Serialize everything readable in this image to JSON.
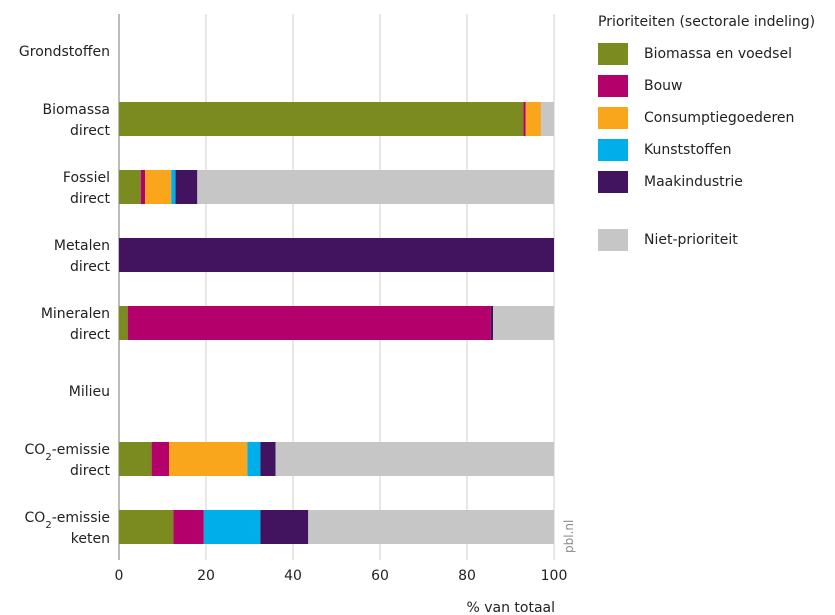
{
  "chart_data": {
    "type": "bar",
    "orientation": "horizontal",
    "stacked": true,
    "xlabel": "% van totaal",
    "xlim": [
      0,
      100
    ],
    "xticks": [
      0,
      20,
      40,
      60,
      80,
      100
    ],
    "grid": true,
    "legend_title": "Prioriteiten (sectorale indeling)",
    "legend_position": "right",
    "credit": "pbl.nl",
    "rows": [
      {
        "label_lines": [
          "Grondstoffen"
        ],
        "kind": "heading"
      },
      {
        "label_lines": [
          "Biomassa",
          "direct"
        ],
        "kind": "bar"
      },
      {
        "label_lines": [
          "Fossiel",
          "direct"
        ],
        "kind": "bar"
      },
      {
        "label_lines": [
          "Metalen",
          "direct"
        ],
        "kind": "bar"
      },
      {
        "label_lines": [
          "Mineralen",
          "direct"
        ],
        "kind": "bar"
      },
      {
        "label_lines": [
          "Milieu"
        ],
        "kind": "heading"
      },
      {
        "label_lines": [
          "CO2-emissie",
          "direct"
        ],
        "kind": "bar"
      },
      {
        "label_lines": [
          "CO2-emissie",
          "keten"
        ],
        "kind": "bar"
      }
    ],
    "series": [
      {
        "name": "Biomassa en voedsel",
        "color": "#7b8b1f",
        "values": [
          null,
          93,
          5,
          0,
          2,
          null,
          7.5,
          12.5
        ]
      },
      {
        "name": "Bouw",
        "color": "#b4006b",
        "values": [
          null,
          0.5,
          1,
          0,
          83.5,
          null,
          4,
          7
        ]
      },
      {
        "name": "Consumptiegoederen",
        "color": "#f9a61d",
        "values": [
          null,
          3.5,
          6,
          0,
          0,
          null,
          18,
          0
        ]
      },
      {
        "name": "Kunststoffen",
        "color": "#00aee9",
        "values": [
          null,
          0,
          1,
          0,
          0,
          null,
          3,
          13
        ]
      },
      {
        "name": "Maakindustrie",
        "color": "#42145f",
        "values": [
          null,
          0,
          5,
          100,
          0.5,
          null,
          3.5,
          11
        ]
      },
      {
        "name": "Niet-prioriteit",
        "color": "#c6c6c6",
        "values": [
          null,
          3,
          82,
          0,
          14,
          null,
          64,
          56.5
        ]
      }
    ]
  }
}
